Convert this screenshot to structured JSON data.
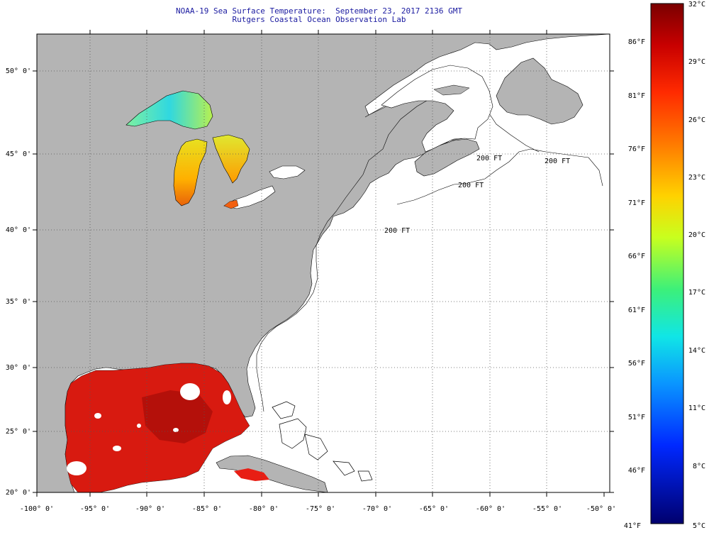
{
  "title": {
    "line1": "NOAA-19 Sea Surface Temperature:  September 23, 2017 2136 GMT",
    "line2": "Rutgers Coastal Ocean Observation Lab"
  },
  "colors": {
    "land": "#b4b4b4",
    "ocean_nodata": "#ffffff",
    "grid": "#555555",
    "title": "#1a1aa0"
  },
  "map": {
    "lat_labels": [
      "50° 0'",
      "45° 0'",
      "40° 0'",
      "35° 0'",
      "30° 0'",
      "25° 0'",
      "20° 0'"
    ],
    "lon_labels": [
      "-100° 0'",
      "-95° 0'",
      "-90° 0'",
      "-85° 0'",
      "-80° 0'",
      "-75° 0'",
      "-70° 0'",
      "-65° 0'",
      "-60° 0'",
      "-55° 0'",
      "-50° 0'"
    ],
    "isobath_label": "200 FT"
  },
  "colorbar": {
    "celsius": [
      "32°C",
      "29°C",
      "26°C",
      "23°C",
      "20°C",
      "17°C",
      "14°C",
      "11°C",
      "8°C",
      "5°C"
    ],
    "fahrenheit": [
      "86°F",
      "81°F",
      "76°F",
      "71°F",
      "66°F",
      "61°F",
      "56°F",
      "51°F",
      "46°F",
      "41°F"
    ]
  }
}
